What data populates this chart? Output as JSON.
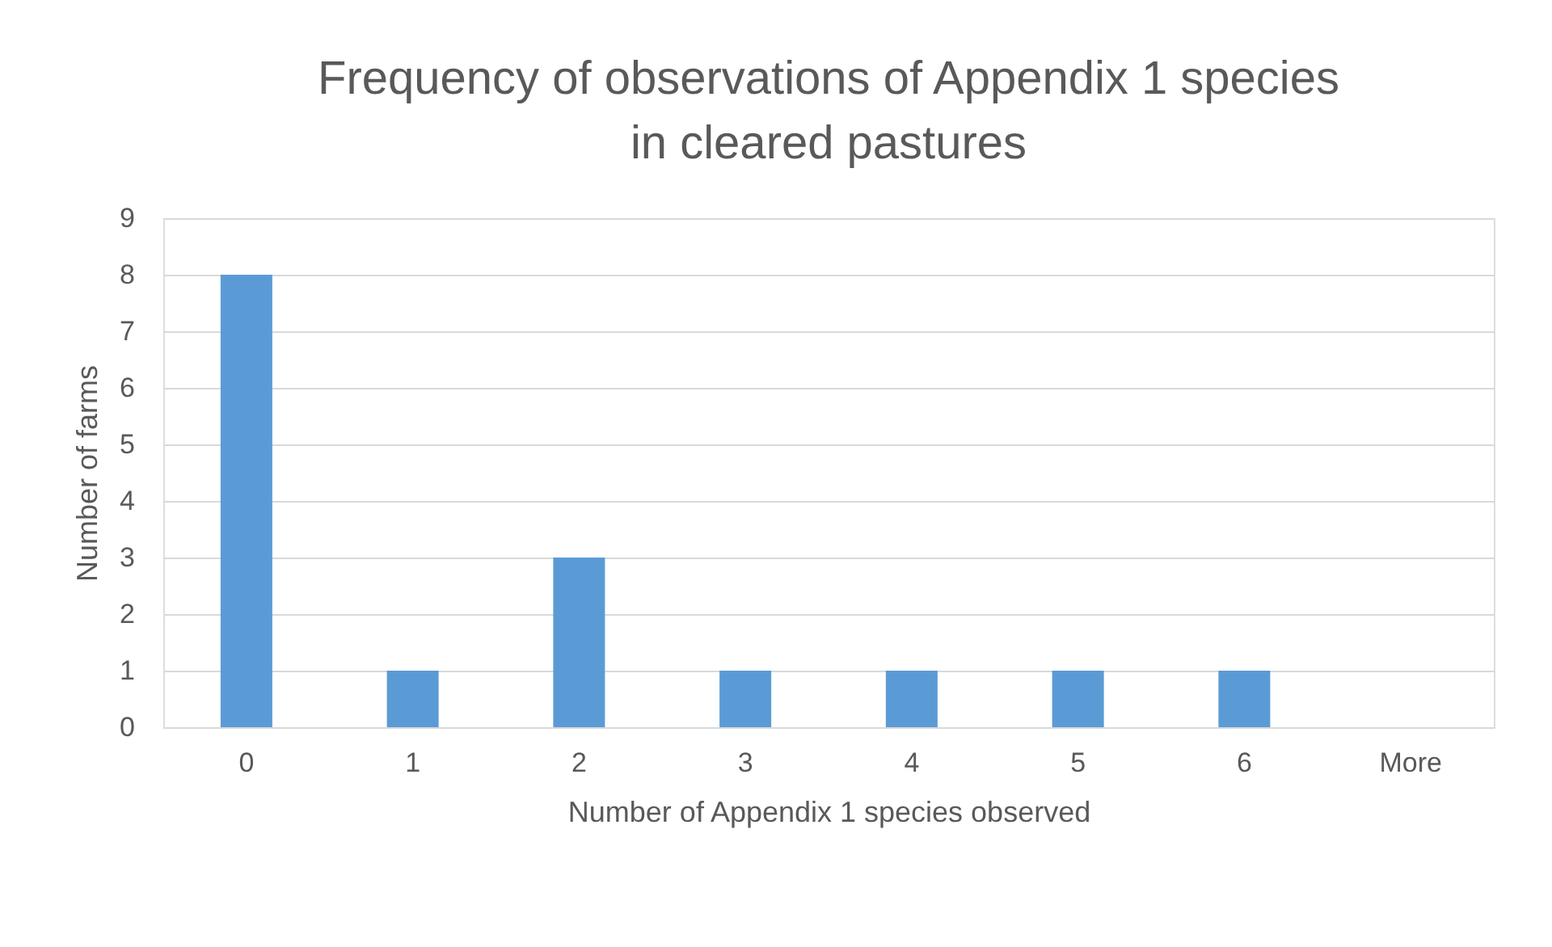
{
  "chart_data": {
    "type": "bar",
    "title": [
      "Frequency of observations of Appendix 1 species",
      "in cleared pastures"
    ],
    "xlabel": "Number of Appendix 1 species observed",
    "ylabel": "Number of farms",
    "categories": [
      "0",
      "1",
      "2",
      "3",
      "4",
      "5",
      "6",
      "More"
    ],
    "values": [
      8,
      1,
      3,
      1,
      1,
      1,
      1,
      0
    ],
    "color": "#5b9bd5",
    "ylim": [
      0,
      9
    ],
    "yticks": [
      0,
      1,
      2,
      3,
      4,
      5,
      6,
      7,
      8,
      9
    ],
    "grid": "y"
  }
}
